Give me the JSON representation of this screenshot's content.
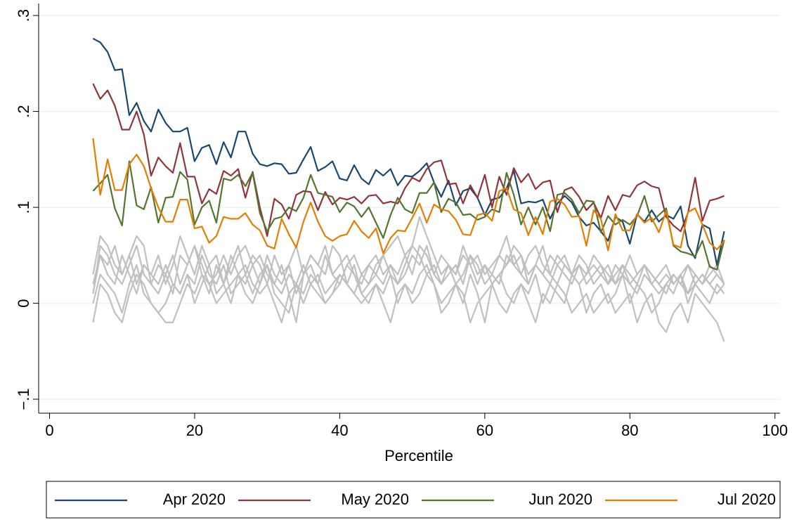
{
  "chart_data": {
    "type": "line",
    "x_label": "Percentile",
    "x": [
      6,
      7,
      8,
      9,
      10,
      11,
      12,
      13,
      14,
      15,
      16,
      17,
      18,
      19,
      20,
      21,
      22,
      23,
      24,
      25,
      26,
      27,
      28,
      29,
      30,
      31,
      32,
      33,
      34,
      35,
      36,
      37,
      38,
      39,
      40,
      41,
      42,
      43,
      44,
      45,
      46,
      47,
      48,
      49,
      50,
      51,
      52,
      53,
      54,
      55,
      56,
      57,
      58,
      59,
      60,
      61,
      62,
      63,
      64,
      65,
      66,
      67,
      68,
      69,
      70,
      71,
      72,
      73,
      74,
      75,
      76,
      77,
      78,
      79,
      80,
      81,
      82,
      83,
      84,
      85,
      86,
      87,
      88,
      89,
      90,
      91,
      92,
      93
    ],
    "xlim": [
      -1.5,
      100.7
    ],
    "xticks": [
      0,
      20,
      40,
      60,
      80,
      100
    ],
    "ylim": [
      -0.1146,
      0.3125
    ],
    "yticks": [
      {
        "value": -0.1,
        "label": "−.1"
      },
      0,
      {
        "value": 0.1,
        "label": ".1"
      },
      {
        "value": 0.2,
        "label": ".2"
      },
      {
        "value": 0.3,
        "label": ".3"
      }
    ],
    "grid": true,
    "legend": "bottom",
    "series": [
      {
        "name": "Apr 2020",
        "color": "#1a476f",
        "values": [
          0.276,
          0.272,
          0.262,
          0.243,
          0.244,
          0.196,
          0.209,
          0.19,
          0.179,
          0.202,
          0.188,
          0.179,
          0.179,
          0.183,
          0.148,
          0.162,
          0.165,
          0.145,
          0.168,
          0.152,
          0.179,
          0.179,
          0.156,
          0.145,
          0.143,
          0.146,
          0.145,
          0.135,
          0.136,
          0.15,
          0.163,
          0.138,
          0.142,
          0.148,
          0.13,
          0.128,
          0.144,
          0.13,
          0.124,
          0.139,
          0.133,
          0.14,
          0.123,
          0.133,
          0.132,
          0.138,
          0.146,
          0.126,
          0.111,
          0.128,
          0.102,
          0.117,
          0.12,
          0.11,
          0.092,
          0.108,
          0.11,
          0.12,
          0.138,
          0.104,
          0.106,
          0.105,
          0.108,
          0.088,
          0.104,
          0.112,
          0.105,
          0.09,
          0.081,
          0.084,
          0.075,
          0.065,
          0.09,
          0.085,
          0.062,
          0.093,
          0.085,
          0.097,
          0.085,
          0.092,
          0.088,
          0.101,
          0.06,
          0.047,
          0.082,
          0.078,
          0.04,
          0.075
        ]
      },
      {
        "name": "May 2020",
        "color": "#90353b",
        "values": [
          0.229,
          0.213,
          0.222,
          0.206,
          0.181,
          0.181,
          0.2,
          0.176,
          0.133,
          0.152,
          0.143,
          0.136,
          0.167,
          0.132,
          0.132,
          0.104,
          0.119,
          0.114,
          0.138,
          0.133,
          0.14,
          0.11,
          0.137,
          0.1,
          0.07,
          0.109,
          0.103,
          0.088,
          0.113,
          0.117,
          0.116,
          0.097,
          0.116,
          0.103,
          0.11,
          0.108,
          0.111,
          0.104,
          0.112,
          0.113,
          0.104,
          0.106,
          0.104,
          0.12,
          0.131,
          0.127,
          0.14,
          0.147,
          0.149,
          0.124,
          0.125,
          0.104,
          0.123,
          0.11,
          0.134,
          0.1,
          0.132,
          0.113,
          0.141,
          0.126,
          0.135,
          0.119,
          0.126,
          0.128,
          0.095,
          0.118,
          0.121,
          0.111,
          0.097,
          0.105,
          0.089,
          0.112,
          0.097,
          0.113,
          0.111,
          0.123,
          0.127,
          0.122,
          0.12,
          0.09,
          0.081,
          0.075,
          0.094,
          0.131,
          0.086,
          0.107,
          0.109,
          0.112
        ]
      },
      {
        "name": "Jun 2020",
        "color": "#55752f",
        "values": [
          0.117,
          0.125,
          0.134,
          0.099,
          0.081,
          0.148,
          0.102,
          0.098,
          0.121,
          0.084,
          0.11,
          0.111,
          0.137,
          0.129,
          0.082,
          0.1,
          0.107,
          0.084,
          0.13,
          0.128,
          0.134,
          0.122,
          0.136,
          0.094,
          0.075,
          0.088,
          0.09,
          0.1,
          0.096,
          0.11,
          0.134,
          0.115,
          0.113,
          0.111,
          0.095,
          0.105,
          0.101,
          0.09,
          0.1,
          0.084,
          0.068,
          0.092,
          0.11,
          0.098,
          0.094,
          0.115,
          0.115,
          0.126,
          0.095,
          0.109,
          0.105,
          0.092,
          0.093,
          0.087,
          0.09,
          0.098,
          0.095,
          0.136,
          0.113,
          0.082,
          0.1,
          0.082,
          0.1,
          0.075,
          0.113,
          0.115,
          0.108,
          0.094,
          0.107,
          0.106,
          0.074,
          0.091,
          0.082,
          0.087,
          0.082,
          0.091,
          0.112,
          0.085,
          0.092,
          0.099,
          0.06,
          0.054,
          0.052,
          0.049,
          0.065,
          0.038,
          0.035,
          0.066
        ]
      },
      {
        "name": "Jul 2020",
        "color": "#e37e00",
        "values": [
          0.172,
          0.113,
          0.15,
          0.118,
          0.118,
          0.145,
          0.155,
          0.143,
          0.12,
          0.1,
          0.085,
          0.085,
          0.108,
          0.108,
          0.078,
          0.08,
          0.063,
          0.07,
          0.09,
          0.088,
          0.088,
          0.094,
          0.082,
          0.076,
          0.06,
          0.057,
          0.088,
          0.072,
          0.058,
          0.085,
          0.105,
          0.085,
          0.07,
          0.065,
          0.07,
          0.072,
          0.086,
          0.075,
          0.068,
          0.078,
          0.052,
          0.068,
          0.076,
          0.075,
          0.089,
          0.104,
          0.084,
          0.103,
          0.098,
          0.096,
          0.087,
          0.072,
          0.071,
          0.092,
          0.094,
          0.086,
          0.117,
          0.12,
          0.098,
          0.094,
          0.071,
          0.09,
          0.072,
          0.106,
          0.109,
          0.103,
          0.09,
          0.091,
          0.06,
          0.097,
          0.088,
          0.055,
          0.093,
          0.076,
          0.076,
          0.093,
          0.084,
          0.089,
          0.074,
          0.096,
          0.061,
          0.058,
          0.095,
          0.099,
          0.082,
          0.063,
          0.056,
          0.065
        ]
      },
      {
        "color": "#c0c0c0",
        "values": [
          0.03,
          0.07,
          0.06,
          0.04,
          0.03,
          0.05,
          0.07,
          0.06,
          0.02,
          0.04,
          0.03,
          0.01,
          0.05,
          0.04,
          0.06,
          0.04,
          0.02,
          0.03,
          0.05,
          0.03,
          0.05,
          0.06,
          0.04,
          0.05,
          0.03,
          0.02,
          0.04,
          0.01,
          -0.02,
          0.03,
          0.05,
          0.04,
          0.03,
          0.06,
          0.05,
          0.02,
          0.01,
          0.03,
          0.04,
          0.03,
          0.05,
          0.06,
          0.07,
          0.05,
          0.06,
          0.09,
          0.07,
          0.05,
          0.03,
          0.04,
          0.02,
          0.03,
          0.05,
          0.04,
          0.02,
          0.03,
          0.05,
          0.04,
          0.06,
          0.05,
          0.02,
          0.04,
          0.03,
          0.05,
          0.04,
          0.03,
          0.02,
          0.04,
          0.03,
          0.05,
          0.04,
          0.02,
          0.03,
          0.04,
          0.02,
          0.03,
          0.04,
          0.03,
          0.02,
          0.03,
          0.02,
          0.03,
          0.04,
          0.02,
          0.03,
          0.02,
          0.03,
          0.02
        ]
      },
      {
        "color": "#c0c0c0",
        "values": [
          0.01,
          0.05,
          0.03,
          0.02,
          0.05,
          0.03,
          0.01,
          0.04,
          0.03,
          0.02,
          0.04,
          0.02,
          0.01,
          0.03,
          0.02,
          0.05,
          0.03,
          0.02,
          0.04,
          0.01,
          0.02,
          0.03,
          0.01,
          0.03,
          0.04,
          0.02,
          0.01,
          0.03,
          0.02,
          0.04,
          0.02,
          0.03,
          0.01,
          0.02,
          0.03,
          0.02,
          0.04,
          0.01,
          0.02,
          0.03,
          0.02,
          0.04,
          0.03,
          0.05,
          0.03,
          0.06,
          0.05,
          0.03,
          0.02,
          0.04,
          0.03,
          0.05,
          0.04,
          0.02,
          0.04,
          0.03,
          0.02,
          0.05,
          0.04,
          0.03,
          0.05,
          0.06,
          0.04,
          0.03,
          0.02,
          0.04,
          0.03,
          0.02,
          0.03,
          0.04,
          0.03,
          0.02,
          0.04,
          0.03,
          0.02,
          0.01,
          0.03,
          0.02,
          0.01,
          0.02,
          0.03,
          0.02,
          0.01,
          0.02,
          0.03,
          0.02,
          0.01,
          0.02
        ]
      },
      {
        "color": "#c0c0c0",
        "values": [
          -0.02,
          0.02,
          0.01,
          -0.01,
          -0.02,
          0.01,
          0.03,
          0.02,
          0,
          -0.01,
          -0.02,
          -0.02,
          0,
          0.02,
          0.01,
          0.03,
          0.02,
          0,
          0.01,
          0.02,
          0.03,
          0.04,
          0.02,
          0.01,
          0.02,
          0,
          -0.02,
          0.01,
          0.02,
          0,
          0.02,
          0.01,
          0,
          0.01,
          0.03,
          0.02,
          0.01,
          0,
          0.01,
          0.02,
          0,
          -0.02,
          0.01,
          0.02,
          0,
          0.01,
          0.03,
          0.02,
          -0.01,
          0,
          0.02,
          0.01,
          -0.02,
          0,
          0.01,
          0.02,
          0,
          -0.01,
          0.01,
          0.02,
          0,
          -0.02,
          0.01,
          0,
          0.02,
          0.01,
          -0.01,
          0,
          0.01,
          -0.01,
          0,
          0.01,
          -0.01,
          0,
          0.01,
          -0.02,
          0,
          0.01,
          -0.02,
          -0.03,
          -0.01,
          0,
          -0.02,
          0.01,
          0,
          -0.01,
          -0.02,
          -0.04
        ]
      },
      {
        "color": "#c0c0c0",
        "values": [
          0.02,
          0.05,
          0.04,
          0.06,
          0.03,
          0.05,
          0.02,
          0.04,
          0.03,
          0.05,
          0.02,
          0.04,
          0.07,
          0.05,
          0.03,
          0.06,
          0.04,
          0.05,
          0.02,
          0.04,
          0.06,
          0.03,
          0.05,
          0.04,
          0.02,
          0.05,
          0.03,
          0.04,
          0.06,
          0.03,
          0.05,
          0.04,
          0.06,
          0.03,
          0.04,
          0.05,
          0.03,
          0.02,
          0.04,
          0.05,
          0.03,
          0.04,
          0.02,
          0.03,
          0.05,
          0.04,
          0.06,
          0.03,
          0.05,
          0.04,
          0.03,
          0.06,
          0.04,
          0.05,
          0.03,
          0.04,
          0.05,
          0.07,
          0.04,
          0.05,
          0.03,
          0.04,
          0.06,
          0.03,
          0.05,
          0.04,
          0.03,
          0.05,
          0.04,
          0.02,
          0.03,
          0.04,
          0.02,
          0.03,
          0.05,
          0.03,
          0.04,
          0.02,
          0.03,
          0.04,
          0.02,
          0.03,
          0.01,
          0.03,
          0.02,
          0.04,
          0.03,
          0.02
        ]
      },
      {
        "color": "#c0c0c0",
        "values": [
          0,
          0.03,
          0.02,
          0.01,
          -0.01,
          0.02,
          0.04,
          0.01,
          0,
          -0.01,
          0,
          0.02,
          0.01,
          0.03,
          0,
          0.02,
          0.04,
          0.01,
          0.02,
          0,
          0.03,
          0.01,
          0,
          0.02,
          0.04,
          0.01,
          0,
          -0.01,
          0.02,
          0.01,
          0.03,
          0.02,
          0,
          0.01,
          0.02,
          0.04,
          0.03,
          0.01,
          0,
          0.02,
          0.01,
          0.03,
          0,
          0.02,
          0.01,
          0.03,
          0.04,
          0.02,
          0,
          0.01,
          0.02,
          0,
          0.03,
          0.01,
          -0.02,
          0.02,
          0.03,
          0.01,
          0,
          0.02,
          0.01,
          0.03,
          0,
          0.02,
          0.01,
          0,
          0.03,
          0.02,
          -0.01,
          0.01,
          0.02,
          0,
          0.01,
          0.03,
          0,
          0.02,
          0.01,
          -0.01,
          0,
          0.02,
          0.01,
          0.03,
          0,
          0.02,
          0.01,
          0,
          0.02,
          0.01
        ]
      },
      {
        "color": "#c0c0c0",
        "values": [
          0.01,
          0.06,
          0.05,
          0.03,
          0.02,
          0.04,
          0.06,
          0.03,
          0.02,
          0.01,
          0.03,
          0.05,
          0.02,
          0.04,
          0.06,
          0.03,
          0.01,
          0.04,
          0.02,
          0.05,
          0.03,
          0.02,
          0.04,
          0.02,
          0.05,
          0.03,
          0.02,
          0.04,
          0.01,
          0.03,
          0.04,
          0.02,
          0.05,
          0.03,
          0.02,
          0.04,
          0.05,
          0.03,
          0.02,
          0.04,
          0.05,
          0.03,
          0.02,
          0.04,
          0.06,
          0.05,
          0.03,
          0.04,
          0.02,
          0.03,
          0.04,
          0.02,
          0.05,
          0.03,
          0.04,
          0.02,
          0.03,
          0.04,
          0.05,
          0.03,
          0.02,
          0.04,
          0.03,
          0.02,
          0.04,
          0.05,
          0.03,
          0.04,
          0.02,
          0.03,
          0.04,
          0.03,
          0.02,
          0.04,
          0.03,
          0.02,
          0.04,
          0.03,
          0.02,
          0.01,
          0.03,
          0.02,
          0.04,
          0.03,
          0.02,
          0.03,
          0.04,
          0.02
        ]
      }
    ]
  }
}
